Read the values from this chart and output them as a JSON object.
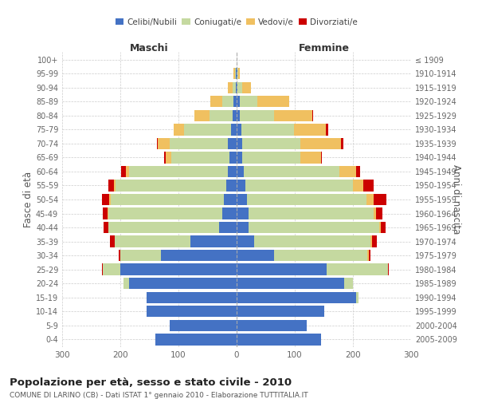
{
  "age_groups": [
    "0-4",
    "5-9",
    "10-14",
    "15-19",
    "20-24",
    "25-29",
    "30-34",
    "35-39",
    "40-44",
    "45-49",
    "50-54",
    "55-59",
    "60-64",
    "65-69",
    "70-74",
    "75-79",
    "80-84",
    "85-89",
    "90-94",
    "95-99",
    "100+"
  ],
  "birth_years": [
    "2005-2009",
    "2000-2004",
    "1995-1999",
    "1990-1994",
    "1985-1989",
    "1980-1984",
    "1975-1979",
    "1970-1974",
    "1965-1969",
    "1960-1964",
    "1955-1959",
    "1950-1954",
    "1945-1949",
    "1940-1944",
    "1935-1939",
    "1930-1934",
    "1925-1929",
    "1920-1924",
    "1915-1919",
    "1910-1914",
    "≤ 1909"
  ],
  "maschi": {
    "celibi": [
      140,
      115,
      155,
      155,
      185,
      200,
      130,
      80,
      30,
      25,
      22,
      18,
      15,
      12,
      15,
      10,
      7,
      5,
      2,
      1,
      0
    ],
    "coniugati": [
      0,
      0,
      0,
      0,
      10,
      30,
      70,
      130,
      190,
      195,
      195,
      190,
      170,
      100,
      100,
      80,
      40,
      20,
      5,
      2,
      0
    ],
    "vedovi": [
      0,
      0,
      0,
      0,
      0,
      0,
      0,
      0,
      1,
      2,
      2,
      3,
      5,
      10,
      20,
      18,
      25,
      20,
      8,
      2,
      0
    ],
    "divorziati": [
      0,
      0,
      0,
      0,
      0,
      2,
      3,
      8,
      8,
      8,
      12,
      10,
      8,
      2,
      2,
      0,
      0,
      0,
      0,
      0,
      0
    ]
  },
  "femmine": {
    "nubili": [
      145,
      120,
      150,
      205,
      185,
      155,
      65,
      30,
      20,
      20,
      18,
      15,
      12,
      10,
      10,
      8,
      5,
      5,
      2,
      1,
      0
    ],
    "coniugate": [
      0,
      0,
      0,
      5,
      15,
      105,
      160,
      200,
      225,
      215,
      205,
      185,
      165,
      100,
      100,
      90,
      60,
      30,
      8,
      2,
      0
    ],
    "vedove": [
      0,
      0,
      0,
      0,
      0,
      0,
      2,
      3,
      3,
      5,
      12,
      18,
      28,
      35,
      70,
      55,
      65,
      55,
      15,
      3,
      0
    ],
    "divorziate": [
      0,
      0,
      0,
      0,
      0,
      2,
      3,
      8,
      8,
      10,
      22,
      18,
      8,
      2,
      4,
      4,
      2,
      0,
      0,
      0,
      0
    ]
  },
  "colors": {
    "celibi_nubili": "#4472c4",
    "coniugati": "#c5d9a0",
    "vedovi": "#f0c060",
    "divorziati": "#cc0000"
  },
  "title": "Popolazione per età, sesso e stato civile - 2010",
  "subtitle": "COMUNE DI LARINO (CB) - Dati ISTAT 1° gennaio 2010 - Elaborazione TUTTITALIA.IT",
  "xlabel_left": "Maschi",
  "xlabel_right": "Femmine",
  "ylabel_left": "Fasce di età",
  "ylabel_right": "Anni di nascita",
  "xlim": 300,
  "bg_color": "#ffffff",
  "grid_color": "#cccccc"
}
